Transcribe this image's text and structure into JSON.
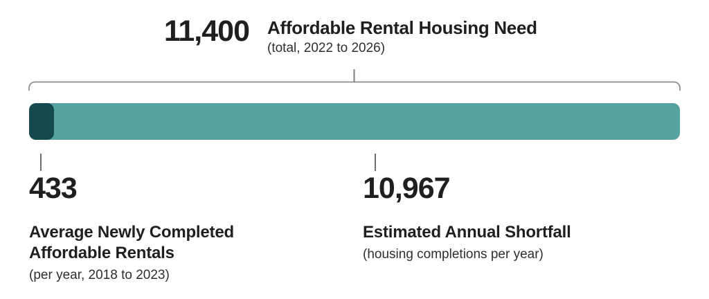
{
  "header": {
    "value": "11,400",
    "title": "Affordable Rental Housing Need",
    "subtitle": "(total, 2022 to 2026)"
  },
  "stats": {
    "completed": {
      "value": "433",
      "label": "Average Newly Completed Affordable Rentals",
      "sublabel": "(per year, 2018 to 2023)"
    },
    "shortfall": {
      "value": "10,967",
      "label": "Estimated Annual Shortfall",
      "sublabel": "(housing completions per year)"
    }
  },
  "chart_data": {
    "type": "bar",
    "orientation": "horizontal",
    "stacked": true,
    "title": "Affordable Rental Housing Need",
    "subtitle": "(total, 2022 to 2026)",
    "total": 11400,
    "series": [
      {
        "name": "Average Newly Completed Affordable Rentals (per year, 2018 to 2023)",
        "value": 433,
        "color": "#14494d"
      },
      {
        "name": "Estimated Annual Shortfall (housing completions per year)",
        "value": 10967,
        "color": "#55a2a1"
      }
    ],
    "annotations": [
      "Bracket above the bar labels the total: 11,400",
      "Tick below dark segment labels 433",
      "Tick below light segment labels 10,967"
    ],
    "grid": false,
    "legend": "none"
  },
  "colors": {
    "segment_completed": "#14494d",
    "segment_shortfall": "#55a2a1",
    "text": "#1f1f1f",
    "bracket": "#8d8d8d",
    "tick": "#6e6e6e",
    "background": "#ffffff"
  }
}
